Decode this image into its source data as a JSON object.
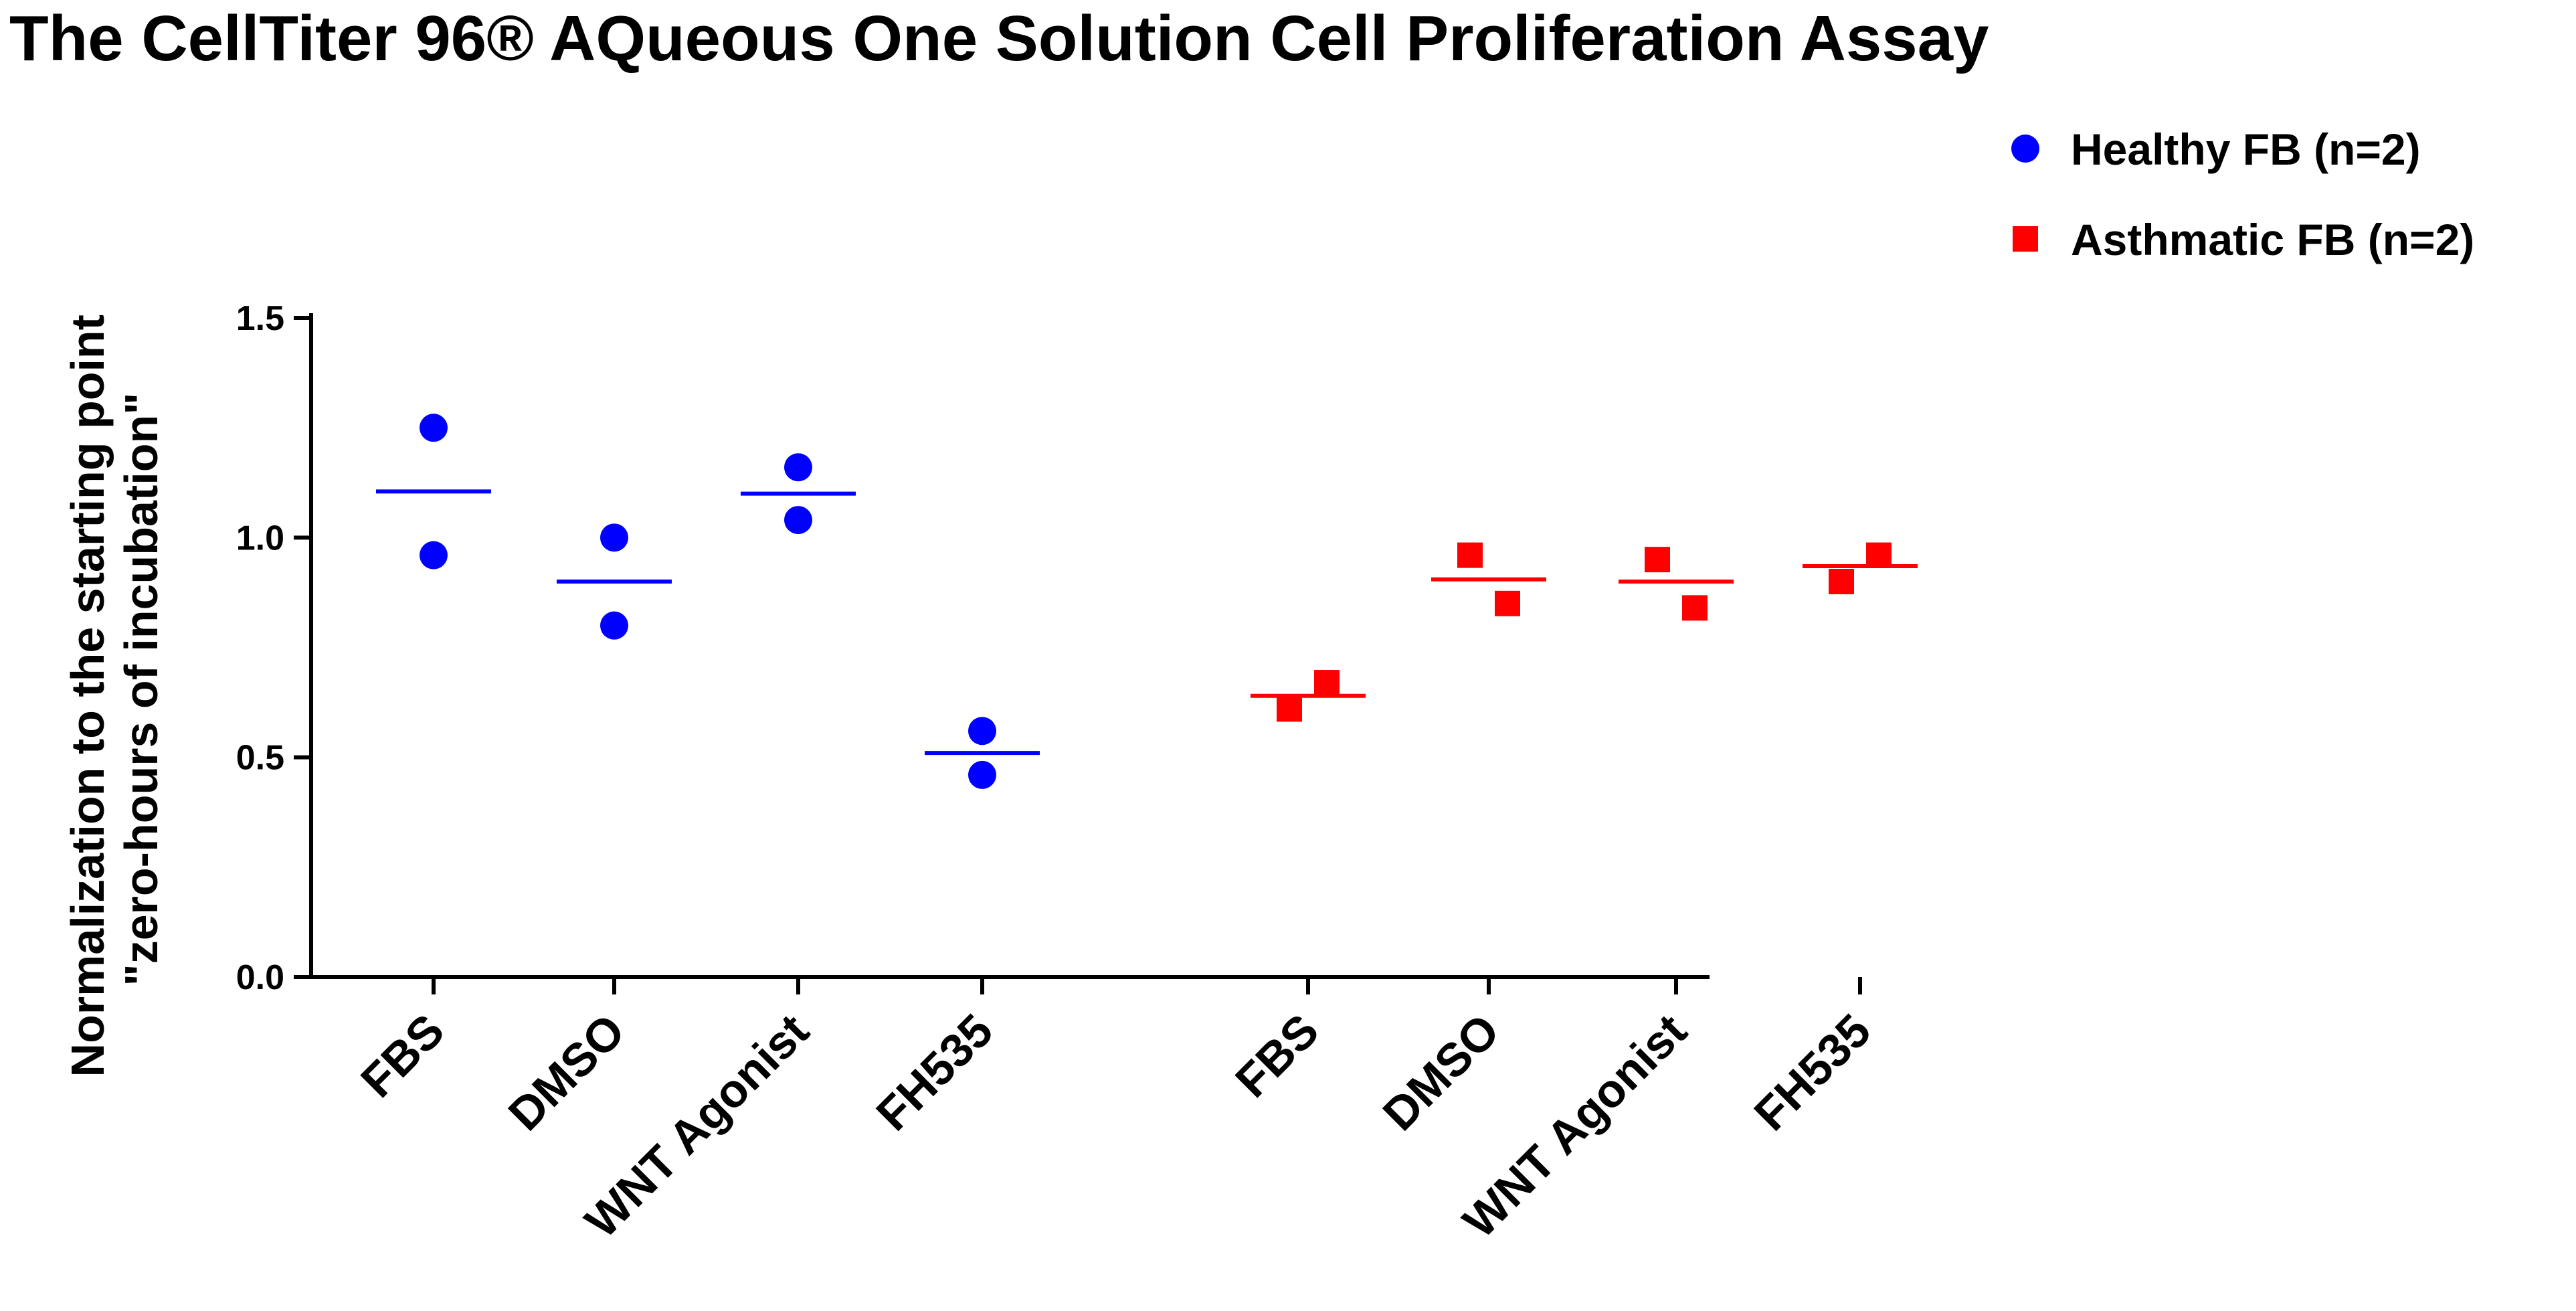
{
  "chart_data": {
    "type": "scatter",
    "title": "The CellTiter 96® AQueous One Solution Cell Proliferation Assay",
    "ylabel": [
      "Normalization to the starting point",
      "\"zero-hours of incubation\""
    ],
    "xlabel": "",
    "ylim": [
      0,
      1.5
    ],
    "yticks": [
      0.0,
      0.5,
      1.0,
      1.5
    ],
    "ytick_labels": [
      "0.0",
      "0.5",
      "1.0",
      "1.5"
    ],
    "categories": [
      "FBS",
      "DMSO",
      "WNT Agonist",
      "FH535",
      "FBS",
      "DMSO",
      "WNT Agonist",
      "FH535"
    ],
    "legend_position": "top-right",
    "series": [
      {
        "name": "Healthy FB (n=2)",
        "marker": "circle",
        "color": "#0000FF",
        "category_indices": [
          0,
          1,
          2,
          3
        ],
        "points": [
          [
            1.25,
            0.96
          ],
          [
            1.0,
            0.8
          ],
          [
            1.16,
            1.04
          ],
          [
            0.56,
            0.46
          ]
        ],
        "means": [
          1.105,
          0.9,
          1.1,
          0.51
        ]
      },
      {
        "name": "Asthmatic FB (n=2)",
        "marker": "square",
        "color": "#FF0000",
        "category_indices": [
          4,
          5,
          6,
          7
        ],
        "points": [
          [
            0.61,
            0.67
          ],
          [
            0.96,
            0.85
          ],
          [
            0.95,
            0.84
          ],
          [
            0.9,
            0.96
          ]
        ],
        "means": [
          0.64,
          0.905,
          0.9,
          0.935
        ]
      }
    ]
  }
}
